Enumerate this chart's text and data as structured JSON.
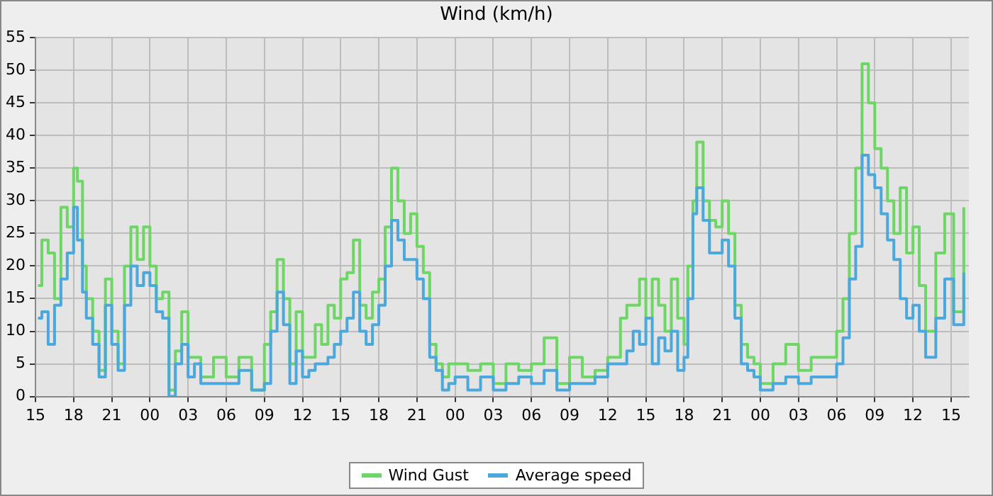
{
  "chart_data": {
    "type": "step",
    "title": "Wind (km/h)",
    "x": [
      15.2,
      15.5,
      16,
      16.5,
      17,
      17.5,
      18,
      18.3,
      18.7,
      19,
      19.5,
      20,
      20.5,
      21,
      21.5,
      22,
      22.5,
      23,
      23.5,
      24,
      24.5,
      25,
      25.5,
      26,
      26.5,
      27,
      27.5,
      28,
      29,
      30,
      31,
      32,
      33,
      33.5,
      34,
      34.5,
      35,
      35.5,
      36,
      36.5,
      37,
      37.5,
      38,
      38.5,
      39,
      39.5,
      40,
      40.5,
      41,
      41.5,
      42,
      42.5,
      43,
      43.5,
      44,
      44.5,
      45,
      45.5,
      46,
      46.5,
      47,
      47.5,
      48,
      49,
      50,
      51,
      52,
      53,
      54,
      55,
      56,
      57,
      58,
      59,
      60,
      61,
      61.5,
      62,
      62.5,
      63,
      63.5,
      64,
      64.5,
      65,
      65.5,
      66,
      66.3,
      66.7,
      67,
      67.5,
      68,
      68.5,
      69,
      69.5,
      70,
      70.5,
      71,
      71.5,
      72,
      73,
      74,
      75,
      76,
      77,
      78,
      78.5,
      79,
      79.5,
      80,
      80.5,
      81,
      81.5,
      82,
      82.5,
      83,
      83.5,
      84,
      84.5,
      85,
      85.8,
      86.5,
      87.2,
      88
    ],
    "series": [
      {
        "name": "Wind Gust",
        "color": "#6dd665",
        "values": [
          17,
          24,
          22,
          15,
          29,
          26,
          35,
          33,
          20,
          15,
          10,
          4,
          18,
          10,
          5,
          20,
          26,
          21,
          26,
          20,
          15,
          16,
          1,
          7,
          13,
          6,
          6,
          3,
          6,
          3,
          6,
          1,
          8,
          13,
          21,
          15,
          5,
          13,
          6,
          6,
          11,
          8,
          14,
          12,
          18,
          19,
          24,
          14,
          12,
          16,
          18,
          26,
          35,
          30,
          25,
          28,
          23,
          19,
          8,
          5,
          3,
          5,
          5,
          4,
          5,
          2,
          5,
          4,
          5,
          9,
          2,
          6,
          3,
          4,
          6,
          12,
          14,
          14,
          18,
          12,
          18,
          14,
          10,
          18,
          12,
          8,
          20,
          30,
          39,
          30,
          27,
          26,
          30,
          25,
          14,
          8,
          6,
          5,
          2,
          5,
          8,
          4,
          6,
          6,
          10,
          15,
          25,
          35,
          51,
          45,
          38,
          35,
          30,
          25,
          32,
          22,
          26,
          17,
          10,
          22,
          28,
          13,
          29
        ]
      },
      {
        "name": "Average speed",
        "color": "#4aa8dc",
        "values": [
          12,
          13,
          8,
          14,
          18,
          22,
          29,
          24,
          16,
          12,
          8,
          3,
          14,
          8,
          4,
          14,
          20,
          17,
          19,
          17,
          13,
          12,
          0,
          5,
          8,
          3,
          5,
          2,
          2,
          2,
          4,
          1,
          2,
          10,
          16,
          11,
          2,
          7,
          3,
          4,
          5,
          5,
          6,
          8,
          10,
          12,
          16,
          10,
          8,
          11,
          14,
          20,
          27,
          24,
          21,
          21,
          18,
          15,
          6,
          4,
          1,
          2,
          3,
          1,
          3,
          1,
          2,
          3,
          2,
          4,
          1,
          2,
          2,
          3,
          5,
          5,
          7,
          10,
          8,
          12,
          5,
          9,
          7,
          10,
          4,
          6,
          15,
          28,
          32,
          27,
          22,
          22,
          24,
          20,
          12,
          5,
          4,
          3,
          1,
          2,
          3,
          2,
          3,
          3,
          5,
          9,
          18,
          23,
          37,
          34,
          32,
          28,
          24,
          21,
          15,
          12,
          14,
          10,
          6,
          12,
          18,
          11,
          19
        ]
      }
    ],
    "xlim": [
      15,
      88.4
    ],
    "xticks": [
      {
        "value": 15,
        "label": "15"
      },
      {
        "value": 18,
        "label": "18"
      },
      {
        "value": 21,
        "label": "21"
      },
      {
        "value": 24,
        "label": "00"
      },
      {
        "value": 27,
        "label": "03"
      },
      {
        "value": 30,
        "label": "06"
      },
      {
        "value": 33,
        "label": "09"
      },
      {
        "value": 36,
        "label": "12"
      },
      {
        "value": 39,
        "label": "15"
      },
      {
        "value": 42,
        "label": "18"
      },
      {
        "value": 45,
        "label": "21"
      },
      {
        "value": 48,
        "label": "00"
      },
      {
        "value": 51,
        "label": "03"
      },
      {
        "value": 54,
        "label": "06"
      },
      {
        "value": 57,
        "label": "09"
      },
      {
        "value": 60,
        "label": "12"
      },
      {
        "value": 63,
        "label": "15"
      },
      {
        "value": 66,
        "label": "18"
      },
      {
        "value": 69,
        "label": "21"
      },
      {
        "value": 72,
        "label": "00"
      },
      {
        "value": 75,
        "label": "03"
      },
      {
        "value": 78,
        "label": "06"
      },
      {
        "value": 81,
        "label": "09"
      },
      {
        "value": 84,
        "label": "12"
      },
      {
        "value": 87,
        "label": "15"
      }
    ],
    "ylim": [
      0,
      55
    ],
    "yticks": [
      0,
      5,
      10,
      15,
      20,
      25,
      30,
      35,
      40,
      45,
      50,
      55
    ],
    "grid": true,
    "legend": "bottom",
    "marker": "none",
    "line_style": "solid"
  }
}
